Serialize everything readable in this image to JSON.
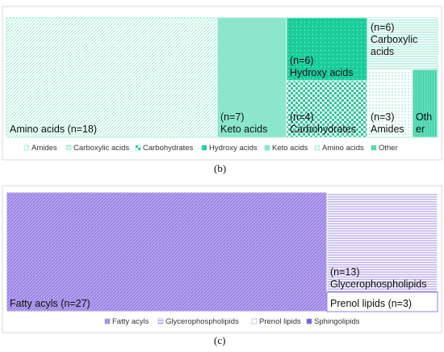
{
  "chart_data": [
    {
      "type": "treemap",
      "panel_label": "(b)",
      "items": [
        {
          "name": "Amino acids",
          "count": 18,
          "label": "Amino acids (n=18)",
          "color": "#7ee5c9"
        },
        {
          "name": "Keto acids",
          "count": 7,
          "label": "(n=7)\nKeto acids",
          "color": "#7fe3c5"
        },
        {
          "name": "Hydroxy acids",
          "count": 6,
          "label": "(n=6)\nHydroxy acids",
          "color": "#20cfa0"
        },
        {
          "name": "Carbohydrates",
          "count": 4,
          "label": "(n=4)\nCarbohydrates",
          "color": "#30c89b"
        },
        {
          "name": "Carboxylic acids",
          "count": 6,
          "label": "(n=6)\nCarboxylic\nacids",
          "color": "#86e4ca"
        },
        {
          "name": "Amides",
          "count": 3,
          "label": "(n=3)\nAmides",
          "color": "#9aead4"
        },
        {
          "name": "Other",
          "count": 2,
          "label": "Oth\ner",
          "color": "#3fd1a6"
        }
      ],
      "legend": [
        "Amides",
        "Carboxylic acids",
        "Carbohydrates",
        "Hydroxy acids",
        "Keto acids",
        "Amino acids",
        "Other"
      ]
    },
    {
      "type": "treemap",
      "panel_label": "(c)",
      "items": [
        {
          "name": "Fatty acyls",
          "count": 27,
          "label": "Fatty acyls (n=27)",
          "color": "#9d87e6"
        },
        {
          "name": "Glycerophospholipids",
          "count": 13,
          "label": "(n=13)\nGlycerophospholipids",
          "color": "#a793ea"
        },
        {
          "name": "Prenol lipids",
          "count": 3,
          "label": "Prenol lipids (n=3)",
          "color": "#ffffff"
        }
      ],
      "legend": [
        "Fatty acyls",
        "Glycerophospholipids",
        "Prenol lipids",
        "Sphingolipids"
      ]
    }
  ]
}
